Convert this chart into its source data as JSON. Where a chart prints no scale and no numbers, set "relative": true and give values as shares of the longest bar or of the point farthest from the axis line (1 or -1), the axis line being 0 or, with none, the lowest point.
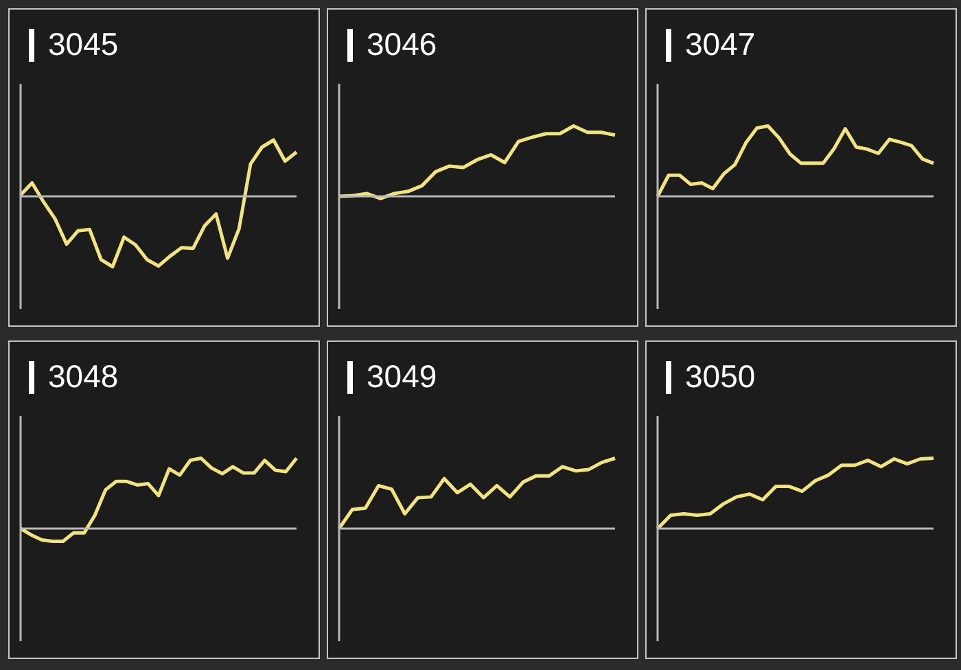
{
  "chart_data": [
    {
      "type": "line",
      "title": "3045",
      "relative": true,
      "marker": "none",
      "categories": [
        null,
        null,
        null,
        null,
        null,
        null,
        null,
        null,
        null,
        null,
        null,
        null,
        null,
        null,
        null,
        null,
        null,
        null,
        null,
        null,
        null,
        null,
        null,
        null,
        null
      ],
      "series": [
        {
          "color": "#f2e47c",
          "values": [
            0.02,
            0.19,
            -0.08,
            -0.32,
            -0.68,
            -0.49,
            -0.47,
            -0.9,
            -1,
            -0.58,
            -0.69,
            -0.9,
            -0.99,
            -0.85,
            -0.73,
            -0.74,
            -0.42,
            -0.25,
            -0.88,
            -0.46,
            0.46,
            0.7,
            0.8,
            0.5,
            0.63
          ]
        }
      ]
    },
    {
      "type": "line",
      "title": "3046",
      "relative": true,
      "marker": "none",
      "categories": [
        null,
        null,
        null,
        null,
        null,
        null,
        null,
        null,
        null,
        null,
        null,
        null,
        null,
        null,
        null,
        null,
        null,
        null,
        null,
        null,
        null
      ],
      "series": [
        {
          "color": "#f2e47c",
          "values": [
            0,
            0.01,
            0.04,
            -0.03,
            0.04,
            0.07,
            0.15,
            0.35,
            0.43,
            0.41,
            0.52,
            0.59,
            0.48,
            0.78,
            0.84,
            0.89,
            0.89,
            1,
            0.91,
            0.91,
            0.87
          ]
        }
      ]
    },
    {
      "type": "line",
      "title": "3047",
      "relative": true,
      "marker": "none",
      "categories": [
        null,
        null,
        null,
        null,
        null,
        null,
        null,
        null,
        null,
        null,
        null,
        null,
        null,
        null,
        null,
        null,
        null,
        null,
        null,
        null,
        null,
        null,
        null,
        null,
        null,
        null
      ],
      "series": [
        {
          "color": "#f2e47c",
          "values": [
            0,
            0.3,
            0.3,
            0.17,
            0.19,
            0.11,
            0.32,
            0.45,
            0.76,
            0.97,
            1,
            0.83,
            0.6,
            0.47,
            0.47,
            0.47,
            0.68,
            0.96,
            0.7,
            0.67,
            0.61,
            0.81,
            0.77,
            0.72,
            0.53,
            0.47
          ]
        }
      ]
    },
    {
      "type": "line",
      "title": "3048",
      "relative": true,
      "marker": "none",
      "categories": [
        null,
        null,
        null,
        null,
        null,
        null,
        null,
        null,
        null,
        null,
        null,
        null,
        null,
        null,
        null,
        null,
        null,
        null,
        null,
        null,
        null,
        null,
        null,
        null,
        null,
        null,
        null
      ],
      "series": [
        {
          "color": "#f2e47c",
          "values": [
            0,
            -0.09,
            -0.16,
            -0.18,
            -0.18,
            -0.06,
            -0.06,
            0.19,
            0.55,
            0.67,
            0.67,
            0.62,
            0.64,
            0.47,
            0.85,
            0.76,
            0.97,
            1,
            0.86,
            0.78,
            0.88,
            0.79,
            0.79,
            0.97,
            0.83,
            0.81,
            1
          ]
        }
      ]
    },
    {
      "type": "line",
      "title": "3049",
      "relative": true,
      "marker": "none",
      "categories": [
        null,
        null,
        null,
        null,
        null,
        null,
        null,
        null,
        null,
        null,
        null,
        null,
        null,
        null,
        null,
        null,
        null,
        null,
        null,
        null,
        null,
        null
      ],
      "series": [
        {
          "color": "#f2e47c",
          "values": [
            0,
            0.27,
            0.29,
            0.61,
            0.56,
            0.21,
            0.44,
            0.45,
            0.71,
            0.51,
            0.63,
            0.44,
            0.61,
            0.45,
            0.66,
            0.75,
            0.75,
            0.88,
            0.82,
            0.84,
            0.94,
            1
          ]
        }
      ]
    },
    {
      "type": "line",
      "title": "3050",
      "relative": true,
      "marker": "none",
      "categories": [
        null,
        null,
        null,
        null,
        null,
        null,
        null,
        null,
        null,
        null,
        null,
        null,
        null,
        null,
        null,
        null,
        null,
        null,
        null,
        null,
        null,
        null
      ],
      "series": [
        {
          "color": "#f2e47c",
          "values": [
            0,
            0.19,
            0.21,
            0.19,
            0.21,
            0.35,
            0.45,
            0.49,
            0.41,
            0.6,
            0.6,
            0.53,
            0.68,
            0.76,
            0.9,
            0.9,
            0.97,
            0.88,
            0.99,
            0.92,
            0.99,
            1
          ]
        }
      ]
    }
  ]
}
